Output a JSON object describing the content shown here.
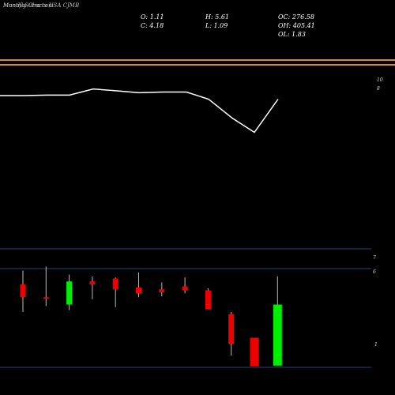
{
  "header": {
    "title": "MunafaSutra.com",
    "subtitle": "Monthly Charts USA CJMB"
  },
  "stats": {
    "o": "O: 1.11",
    "c": "C: 4.18",
    "h": "H: 5.61",
    "l": "L: 1.09",
    "oc": "OC: 276.58",
    "oh": "OH: 405.41",
    "ol": "OL: 1.83"
  },
  "colors": {
    "background": "#000000",
    "up": "#00ee00",
    "down": "#ee0000",
    "orange_level": "#d98a2b",
    "grid": "#2a3f7a",
    "line": "#ffffff"
  },
  "chart_data": [
    {
      "type": "line",
      "label_right_top": "10",
      "label_right_bottom": "8",
      "orange_levels": [
        10,
        9.8
      ],
      "series": [
        {
          "values": [
            8.5,
            8.5,
            8.52,
            8.52,
            8.78,
            8.7,
            8.62,
            8.65,
            8.65,
            8.35,
            7.55,
            6.95,
            8.35
          ]
        }
      ],
      "ylim": [
        2.2,
        11.2
      ]
    },
    {
      "type": "candlestick",
      "ticks": [
        "7",
        "6",
        "1"
      ],
      "grid_levels": [
        7,
        6,
        1
      ],
      "candles": [
        {
          "o": 5.2,
          "h": 5.9,
          "l": 3.8,
          "c": 4.55
        },
        {
          "o": 4.55,
          "h": 6.1,
          "l": 4.1,
          "c": 4.5
        },
        {
          "o": 4.2,
          "h": 5.7,
          "l": 3.9,
          "c": 5.35
        },
        {
          "o": 5.35,
          "h": 5.6,
          "l": 4.45,
          "c": 5.2
        },
        {
          "o": 5.5,
          "h": 5.55,
          "l": 4.05,
          "c": 4.95
        },
        {
          "o": 5.05,
          "h": 5.8,
          "l": 4.55,
          "c": 4.75
        },
        {
          "o": 4.95,
          "h": 5.3,
          "l": 4.6,
          "c": 4.8
        },
        {
          "o": 5.1,
          "h": 5.55,
          "l": 4.75,
          "c": 4.9
        },
        {
          "o": 4.9,
          "h": 5.0,
          "l": 3.95,
          "c": 3.95
        },
        {
          "o": 3.7,
          "h": 3.8,
          "l": 1.6,
          "c": 2.2
        },
        {
          "o": 2.5,
          "h": 2.5,
          "l": 1.05,
          "c": 1.05
        },
        {
          "o": 1.09,
          "h": 5.61,
          "l": 1.09,
          "c": 4.18
        }
      ],
      "ylim": [
        0,
        8
      ]
    }
  ]
}
